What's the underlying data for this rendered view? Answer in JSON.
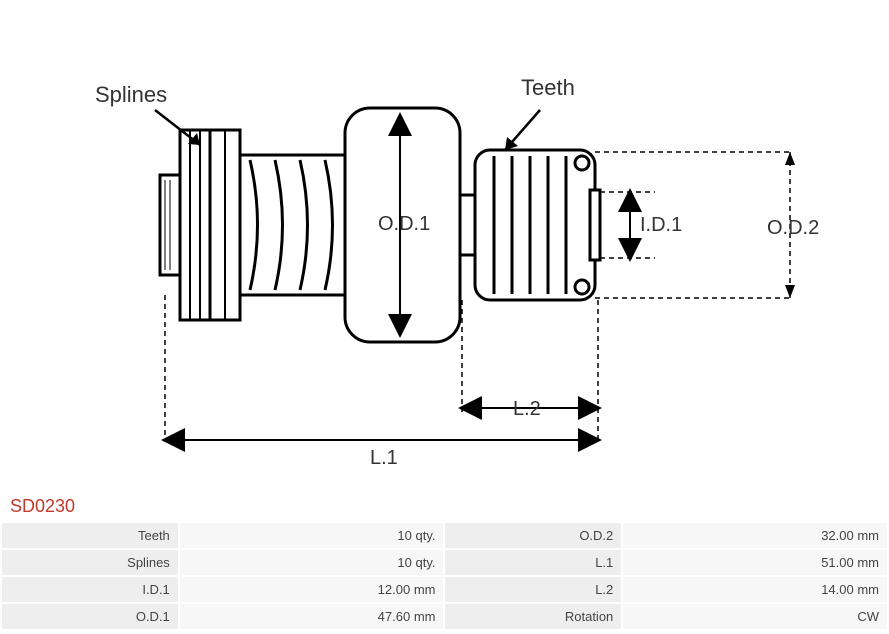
{
  "part_number": "SD0230",
  "diagram": {
    "annot_splines": "Splines",
    "annot_teeth": "Teeth",
    "label_od1": "O.D.1",
    "label_od2": "O.D.2",
    "label_id1": "I.D.1",
    "label_l1": "L.1",
    "label_l2": "L.2",
    "stroke_main": "#000000",
    "stroke_dim": "#000000",
    "stroke_width_main": 3,
    "stroke_width_thin": 2,
    "arrow_fill": "#000000"
  },
  "specs": {
    "rows": [
      {
        "l1": "Teeth",
        "v1": "10 qty.",
        "l2": "O.D.2",
        "v2": "32.00 mm"
      },
      {
        "l1": "Splines",
        "v1": "10 qty.",
        "l2": "L.1",
        "v2": "51.00 mm"
      },
      {
        "l1": "I.D.1",
        "v1": "12.00 mm",
        "l2": "L.2",
        "v2": "14.00 mm"
      },
      {
        "l1": "O.D.1",
        "v1": "47.60 mm",
        "l2": "Rotation",
        "v2": "CW"
      }
    ]
  }
}
